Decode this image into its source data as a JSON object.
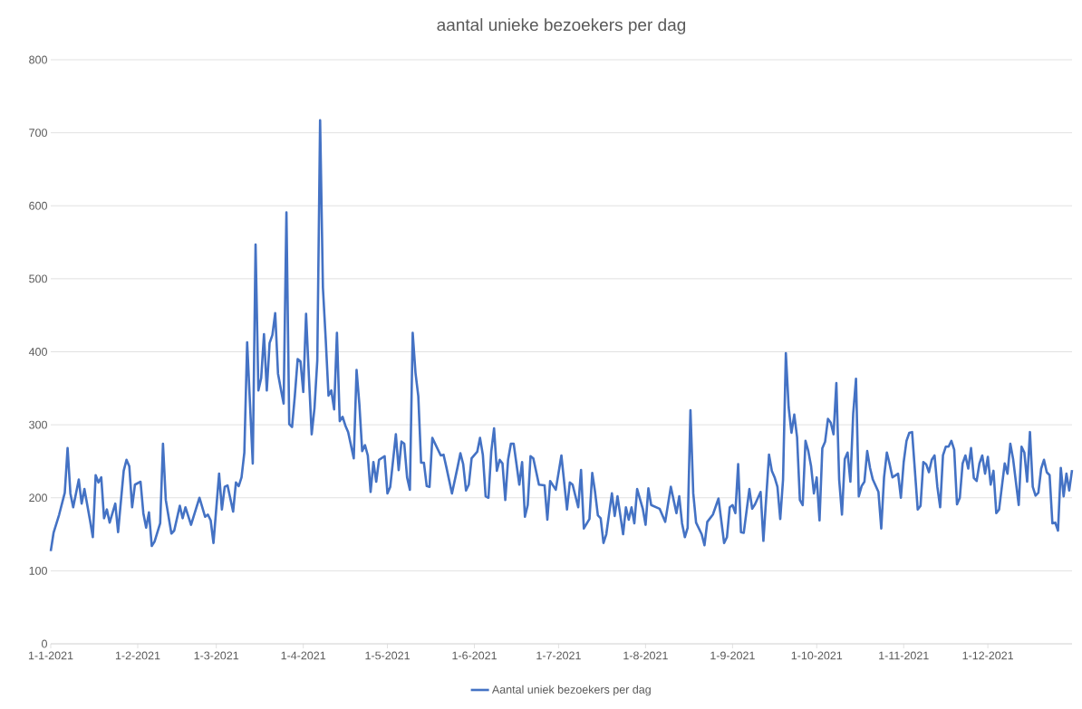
{
  "chart_data": {
    "type": "line",
    "title": "aantal unieke bezoekers per dag",
    "x": [
      "2021-01-01",
      "2021-01-02",
      "2021-01-04",
      "2021-01-06",
      "2021-01-07",
      "2021-01-08",
      "2021-01-09",
      "2021-01-11",
      "2021-01-12",
      "2021-01-13",
      "2021-01-15",
      "2021-01-16",
      "2021-01-17",
      "2021-01-18",
      "2021-01-19",
      "2021-01-20",
      "2021-01-21",
      "2021-01-22",
      "2021-01-24",
      "2021-01-25",
      "2021-01-27",
      "2021-01-28",
      "2021-01-29",
      "2021-01-30",
      "2021-01-31",
      "2021-02-02",
      "2021-02-03",
      "2021-02-04",
      "2021-02-05",
      "2021-02-06",
      "2021-02-07",
      "2021-02-09",
      "2021-02-10",
      "2021-02-11",
      "2021-02-13",
      "2021-02-14",
      "2021-02-16",
      "2021-02-17",
      "2021-02-18",
      "2021-02-20",
      "2021-02-23",
      "2021-02-25",
      "2021-02-26",
      "2021-02-27",
      "2021-02-28",
      "2021-03-02",
      "2021-03-03",
      "2021-03-04",
      "2021-03-05",
      "2021-03-07",
      "2021-03-08",
      "2021-03-09",
      "2021-03-10",
      "2021-03-11",
      "2021-03-12",
      "2021-03-14",
      "2021-03-15",
      "2021-03-16",
      "2021-03-17",
      "2021-03-18",
      "2021-03-19",
      "2021-03-20",
      "2021-03-21",
      "2021-03-22",
      "2021-03-23",
      "2021-03-24",
      "2021-03-25",
      "2021-03-26",
      "2021-03-27",
      "2021-03-28",
      "2021-03-29",
      "2021-03-30",
      "2021-03-31",
      "2021-04-01",
      "2021-04-02",
      "2021-04-03",
      "2021-04-04",
      "2021-04-05",
      "2021-04-06",
      "2021-04-07",
      "2021-04-08",
      "2021-04-09",
      "2021-04-10",
      "2021-04-11",
      "2021-04-12",
      "2021-04-13",
      "2021-04-14",
      "2021-04-15",
      "2021-04-16",
      "2021-04-17",
      "2021-04-19",
      "2021-04-20",
      "2021-04-21",
      "2021-04-22",
      "2021-04-23",
      "2021-04-24",
      "2021-04-25",
      "2021-04-26",
      "2021-04-27",
      "2021-04-28",
      "2021-04-30",
      "2021-05-01",
      "2021-05-02",
      "2021-05-04",
      "2021-05-05",
      "2021-05-06",
      "2021-05-07",
      "2021-05-08",
      "2021-05-09",
      "2021-05-10",
      "2021-05-11",
      "2021-05-12",
      "2021-05-13",
      "2021-05-14",
      "2021-05-15",
      "2021-05-16",
      "2021-05-17",
      "2021-05-20",
      "2021-05-21",
      "2021-05-22",
      "2021-05-24",
      "2021-05-26",
      "2021-05-27",
      "2021-05-28",
      "2021-05-29",
      "2021-05-30",
      "2021-05-31",
      "2021-06-02",
      "2021-06-03",
      "2021-06-04",
      "2021-06-05",
      "2021-06-06",
      "2021-06-07",
      "2021-06-08",
      "2021-06-09",
      "2021-06-10",
      "2021-06-11",
      "2021-06-12",
      "2021-06-13",
      "2021-06-14",
      "2021-06-15",
      "2021-06-17",
      "2021-06-18",
      "2021-06-19",
      "2021-06-20",
      "2021-06-21",
      "2021-06-22",
      "2021-06-24",
      "2021-06-26",
      "2021-06-27",
      "2021-06-28",
      "2021-06-30",
      "2021-07-02",
      "2021-07-04",
      "2021-07-05",
      "2021-07-06",
      "2021-07-08",
      "2021-07-09",
      "2021-07-10",
      "2021-07-12",
      "2021-07-13",
      "2021-07-14",
      "2021-07-15",
      "2021-07-16",
      "2021-07-17",
      "2021-07-18",
      "2021-07-20",
      "2021-07-21",
      "2021-07-22",
      "2021-07-24",
      "2021-07-25",
      "2021-07-26",
      "2021-07-27",
      "2021-07-28",
      "2021-07-29",
      "2021-07-31",
      "2021-08-01",
      "2021-08-02",
      "2021-08-03",
      "2021-08-06",
      "2021-08-08",
      "2021-08-10",
      "2021-08-12",
      "2021-08-13",
      "2021-08-14",
      "2021-08-15",
      "2021-08-16",
      "2021-08-17",
      "2021-08-18",
      "2021-08-19",
      "2021-08-21",
      "2021-08-22",
      "2021-08-23",
      "2021-08-25",
      "2021-08-27",
      "2021-08-29",
      "2021-08-30",
      "2021-08-31",
      "2021-09-01",
      "2021-09-02",
      "2021-09-03",
      "2021-09-04",
      "2021-09-05",
      "2021-09-07",
      "2021-09-08",
      "2021-09-09",
      "2021-09-11",
      "2021-09-12",
      "2021-09-14",
      "2021-09-15",
      "2021-09-16",
      "2021-09-17",
      "2021-09-18",
      "2021-09-19",
      "2021-09-20",
      "2021-09-21",
      "2021-09-22",
      "2021-09-23",
      "2021-09-24",
      "2021-09-25",
      "2021-09-26",
      "2021-09-27",
      "2021-09-28",
      "2021-09-29",
      "2021-09-30",
      "2021-10-01",
      "2021-10-02",
      "2021-10-03",
      "2021-10-04",
      "2021-10-05",
      "2021-10-06",
      "2021-10-07",
      "2021-10-08",
      "2021-10-09",
      "2021-10-10",
      "2021-10-11",
      "2021-10-12",
      "2021-10-13",
      "2021-10-14",
      "2021-10-15",
      "2021-10-16",
      "2021-10-17",
      "2021-10-18",
      "2021-10-19",
      "2021-10-20",
      "2021-10-21",
      "2021-10-23",
      "2021-10-24",
      "2021-10-25",
      "2021-10-26",
      "2021-10-27",
      "2021-10-28",
      "2021-10-30",
      "2021-10-31",
      "2021-11-01",
      "2021-11-02",
      "2021-11-03",
      "2021-11-04",
      "2021-11-06",
      "2021-11-07",
      "2021-11-08",
      "2021-11-09",
      "2021-11-10",
      "2021-11-11",
      "2021-11-12",
      "2021-11-13",
      "2021-11-14",
      "2021-11-15",
      "2021-11-16",
      "2021-11-17",
      "2021-11-18",
      "2021-11-19",
      "2021-11-20",
      "2021-11-21",
      "2021-11-22",
      "2021-11-23",
      "2021-11-24",
      "2021-11-25",
      "2021-11-26",
      "2021-11-27",
      "2021-11-28",
      "2021-11-29",
      "2021-11-30",
      "2021-12-01",
      "2021-12-02",
      "2021-12-03",
      "2021-12-04",
      "2021-12-05",
      "2021-12-07",
      "2021-12-08",
      "2021-12-09",
      "2021-12-10",
      "2021-12-12",
      "2021-12-13",
      "2021-12-14",
      "2021-12-15",
      "2021-12-16",
      "2021-12-17",
      "2021-12-18",
      "2021-12-19",
      "2021-12-20",
      "2021-12-21",
      "2021-12-22",
      "2021-12-23",
      "2021-12-24",
      "2021-12-25",
      "2021-12-26",
      "2021-12-27",
      "2021-12-28",
      "2021-12-29",
      "2021-12-30",
      "2021-12-31"
    ],
    "series": [
      {
        "name": "Aantal uniek bezoekers per dag",
        "color": "#4472c4",
        "values": [
          127,
          152,
          177,
          207,
          268,
          206,
          187,
          225,
          192,
          212,
          169,
          146,
          231,
          221,
          228,
          172,
          184,
          166,
          192,
          153,
          237,
          252,
          243,
          187,
          218,
          222,
          179,
          159,
          180,
          134,
          140,
          165,
          274,
          197,
          151,
          155,
          189,
          172,
          187,
          163,
          200,
          174,
          177,
          169,
          138,
          233,
          184,
          215,
          217,
          181,
          221,
          216,
          228,
          262,
          413,
          247,
          547,
          347,
          364,
          424,
          347,
          412,
          423,
          453,
          370,
          349,
          329,
          591,
          301,
          297,
          340,
          390,
          387,
          345,
          452,
          367,
          287,
          323,
          388,
          717,
          488,
          417,
          340,
          347,
          321,
          426,
          305,
          311,
          299,
          290,
          254,
          375,
          328,
          264,
          272,
          258,
          208,
          249,
          222,
          252,
          257,
          206,
          215,
          287,
          238,
          277,
          274,
          228,
          211,
          426,
          371,
          339,
          248,
          248,
          216,
          215,
          282,
          258,
          259,
          242,
          206,
          242,
          261,
          246,
          210,
          218,
          254,
          263,
          282,
          259,
          202,
          200,
          263,
          295,
          237,
          252,
          247,
          197,
          252,
          274,
          274,
          218,
          249,
          174,
          190,
          257,
          254,
          218,
          217,
          170,
          223,
          211,
          258,
          184,
          221,
          218,
          187,
          238,
          158,
          171,
          234,
          208,
          176,
          172,
          138,
          150,
          206,
          175,
          202,
          150,
          187,
          170,
          187,
          165,
          212,
          185,
          163,
          213,
          190,
          185,
          167,
          215,
          179,
          202,
          165,
          146,
          159,
          320,
          206,
          166,
          150,
          135,
          167,
          177,
          199,
          138,
          146,
          187,
          190,
          179,
          246,
          153,
          152,
          212,
          185,
          191,
          208,
          141,
          259,
          237,
          228,
          215,
          171,
          225,
          398,
          324,
          289,
          314,
          283,
          197,
          190,
          278,
          264,
          243,
          206,
          228,
          169,
          268,
          277,
          308,
          303,
          287,
          357,
          225,
          177,
          253,
          262,
          222,
          315,
          363,
          202,
          216,
          222,
          264,
          241,
          225,
          208,
          158,
          228,
          262,
          246,
          228,
          233,
          200,
          249,
          278,
          289,
          290,
          184,
          189,
          249,
          246,
          235,
          252,
          258,
          215,
          187,
          258,
          270,
          270,
          278,
          266,
          191,
          200,
          247,
          258,
          240,
          268,
          227,
          223,
          247,
          258,
          233,
          256,
          218,
          237,
          179,
          184,
          247,
          233,
          274,
          253,
          190,
          270,
          262,
          222,
          290,
          215,
          203,
          207,
          240,
          252,
          235,
          231,
          165,
          166,
          155,
          241,
          202,
          233,
          210,
          238
        ]
      }
    ],
    "xlim": [
      "2021-01-01",
      "2021-12-31"
    ],
    "xticks": [
      {
        "value": "2021-01-01",
        "label": "1-1-2021"
      },
      {
        "value": "2021-02-01",
        "label": "1-2-2021"
      },
      {
        "value": "2021-03-01",
        "label": "1-3-2021"
      },
      {
        "value": "2021-04-01",
        "label": "1-4-2021"
      },
      {
        "value": "2021-05-01",
        "label": "1-5-2021"
      },
      {
        "value": "2021-06-01",
        "label": "1-6-2021"
      },
      {
        "value": "2021-07-01",
        "label": "1-7-2021"
      },
      {
        "value": "2021-08-01",
        "label": "1-8-2021"
      },
      {
        "value": "2021-09-01",
        "label": "1-9-2021"
      },
      {
        "value": "2021-10-01",
        "label": "1-10-2021"
      },
      {
        "value": "2021-11-01",
        "label": "1-11-2021"
      },
      {
        "value": "2021-12-01",
        "label": "1-12-2021"
      }
    ],
    "ylim": [
      0,
      800
    ],
    "yticks": [
      0,
      100,
      200,
      300,
      400,
      500,
      600,
      700,
      800
    ],
    "grid": "y",
    "legend": "bottom"
  }
}
